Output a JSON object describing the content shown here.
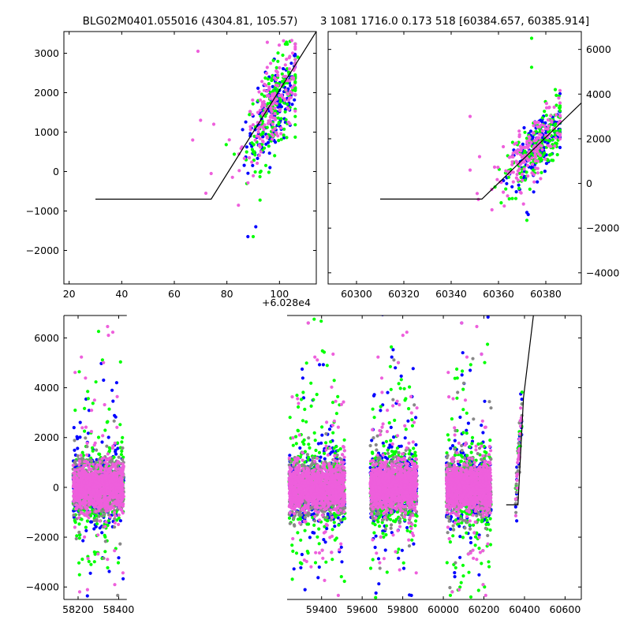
{
  "chart_data": [
    {
      "id": "top-left",
      "type": "scatter",
      "title": "BLG02M0401.055016 (4304.81, 105.57)",
      "xlim": [
        18,
        114
      ],
      "ylim": [
        -2850,
        3550
      ],
      "xticks": [
        20,
        40,
        60,
        80,
        100
      ],
      "yticks": [
        -2000,
        -1000,
        0,
        1000,
        2000,
        3000
      ],
      "yaxis_side": "left",
      "model": {
        "x": [
          30,
          74,
          114
        ],
        "y": [
          -700,
          -700,
          3550
        ]
      },
      "series": [
        {
          "color": "#0000ff",
          "cloud": {
            "x_range": [
              76,
              106
            ],
            "center": [
              98,
              1550
            ],
            "spread": [
              7,
              500
            ],
            "slope": 85
          },
          "outliers": [
            [
              91,
              -1400
            ],
            [
              88,
              -1650
            ],
            [
              98,
              2850
            ]
          ]
        },
        {
          "color": "#00ff00",
          "cloud": {
            "x_range": [
              78,
              106
            ],
            "center": [
              98,
              1600
            ],
            "spread": [
              7,
              550
            ],
            "slope": 85
          },
          "outliers": [
            [
              90,
              -1650
            ],
            [
              104,
              3300
            ],
            [
              107,
              2900
            ]
          ]
        },
        {
          "color": "#ee5fdc",
          "cloud": {
            "x_range": [
              70,
              106
            ],
            "center": [
              98,
              1700
            ],
            "spread": [
              8,
              550
            ],
            "slope": 85
          },
          "outliers": [
            [
              69,
              3050
            ],
            [
              67,
              800
            ],
            [
              75,
              1200
            ],
            [
              72,
              -550
            ],
            [
              74,
              -50
            ],
            [
              70,
              1300
            ]
          ]
        }
      ]
    },
    {
      "id": "top-right",
      "type": "scatter",
      "title": "3 1081 1716.0 0.173 518 [60384.657, 60385.914]",
      "xlim": [
        60288,
        60395
      ],
      "ylim": [
        -4500,
        6800
      ],
      "xticks": [
        60300,
        60320,
        60340,
        60360,
        60380
      ],
      "xtick_labels": [
        "60300",
        "60320",
        "60340",
        "60360",
        "60380"
      ],
      "x_offset_label": "+6.028e4",
      "yticks": [
        -4000,
        -2000,
        0,
        2000,
        4000,
        6000
      ],
      "yaxis_side": "right",
      "model": {
        "x": [
          60310,
          60353,
          60395
        ],
        "y": [
          -700,
          -700,
          3600
        ]
      },
      "series": [
        {
          "color": "#0000ff",
          "cloud": {
            "x_range": [
              60356,
              60386
            ],
            "center": [
              60376,
              1600
            ],
            "spread": [
              8,
              650
            ],
            "slope": 110
          },
          "outliers": [
            [
              60372,
              -1300
            ]
          ]
        },
        {
          "color": "#00ff00",
          "cloud": {
            "x_range": [
              60356,
              60386
            ],
            "center": [
              60376,
              1600
            ],
            "spread": [
              8,
              700
            ],
            "slope": 110
          },
          "outliers": [
            [
              60374,
              6500
            ],
            [
              60374,
              5200
            ],
            [
              60372,
              -1650
            ],
            [
              60384,
              4200
            ]
          ]
        },
        {
          "color": "#ee5fdc",
          "cloud": {
            "x_range": [
              60347,
              60386
            ],
            "center": [
              60374,
              1500
            ],
            "spread": [
              10,
              650
            ],
            "slope": 110
          },
          "outliers": [
            [
              60348,
              3000
            ],
            [
              60351,
              -450
            ],
            [
              60348,
              600
            ],
            [
              60352,
              1200
            ]
          ]
        }
      ]
    },
    {
      "id": "bottom",
      "type": "scatter",
      "title": "",
      "xlim": [
        58130,
        60680
      ],
      "ylim": [
        -4500,
        6900
      ],
      "xticks": [
        58200,
        58400,
        59400,
        59600,
        59800,
        60000,
        60200,
        60400,
        60600
      ],
      "xtick_labels": [
        "58200",
        "58400",
        "59400",
        "59600",
        "59800",
        "60000",
        "60200",
        "60400",
        "60600"
      ],
      "yticks": [
        -4000,
        -2000,
        0,
        2000,
        4000,
        6000
      ],
      "yaxis_side": "left",
      "axis_break": {
        "from": 58440,
        "to": 59230
      },
      "model": {
        "x": [
          60310,
          60368,
          60395,
          60450
        ],
        "y": [
          -700,
          -700,
          3600,
          7300
        ]
      },
      "seasons": [
        {
          "x_range": [
            58175,
            58425
          ],
          "points": 700
        },
        {
          "x_range": [
            59240,
            59515
          ],
          "points": 800
        },
        {
          "x_range": [
            59640,
            59870
          ],
          "points": 750
        },
        {
          "x_range": [
            60015,
            60235
          ],
          "points": 750
        }
      ],
      "event_segment": {
        "x_range": [
          60355,
          60388
        ]
      },
      "series": [
        {
          "color": "#0000ff",
          "core_sd": 650,
          "outlier_fraction": 0.14
        },
        {
          "color": "#00ff00",
          "core_sd": 700,
          "outlier_fraction": 0.22
        },
        {
          "color": "#888888",
          "core_sd": 600,
          "outlier_fraction": 0.04
        },
        {
          "color": "#ee5fdc",
          "core_sd": 420,
          "outlier_fraction": 0.06
        }
      ]
    }
  ]
}
